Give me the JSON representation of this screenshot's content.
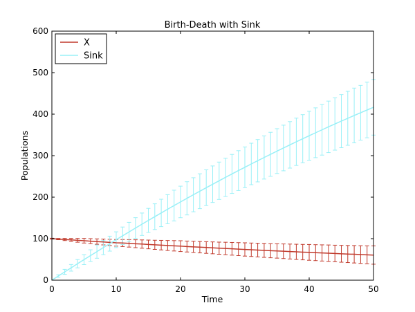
{
  "chart_data": {
    "type": "line",
    "title": "Birth-Death with Sink",
    "xlabel": "Time",
    "ylabel": "Populations",
    "xlim": [
      0,
      50
    ],
    "ylim": [
      0,
      600
    ],
    "xticks": [
      0,
      10,
      20,
      30,
      40,
      50
    ],
    "yticks": [
      0,
      100,
      200,
      300,
      400,
      500,
      600
    ],
    "xtick_labels": [
      "0",
      "10",
      "20",
      "30",
      "40",
      "50"
    ],
    "ytick_labels": [
      "0",
      "100",
      "200",
      "300",
      "400",
      "500",
      "600"
    ],
    "grid": false,
    "legend_position": "upper-left",
    "x": [
      0,
      1,
      2,
      3,
      4,
      5,
      6,
      7,
      8,
      9,
      10,
      11,
      12,
      13,
      14,
      15,
      16,
      17,
      18,
      19,
      20,
      21,
      22,
      23,
      24,
      25,
      26,
      27,
      28,
      29,
      30,
      31,
      32,
      33,
      34,
      35,
      36,
      37,
      38,
      39,
      40,
      41,
      42,
      43,
      44,
      45,
      46,
      47,
      48,
      49,
      50
    ],
    "series": [
      {
        "name": "X",
        "color": "#c0392b",
        "values": [
          100,
          99,
          98,
          97,
          96,
          95,
          94,
          93,
          92,
          91,
          90,
          89.5,
          88.7,
          87.8,
          87,
          86.1,
          85.2,
          84.4,
          83.6,
          82.8,
          82,
          81.1,
          80.3,
          79.5,
          78.7,
          77.9,
          77.1,
          76.4,
          75.6,
          74.8,
          74,
          73.3,
          72.6,
          71.8,
          71,
          70.4,
          69.7,
          69,
          68.3,
          67.6,
          67,
          66.3,
          65.6,
          65,
          64.3,
          63.6,
          63,
          62.4,
          61.7,
          61.1,
          60.5
        ],
        "errors": [
          1,
          1.5,
          2.5,
          3.5,
          4.5,
          5.5,
          6,
          6.5,
          7,
          7.5,
          8,
          8.5,
          9,
          9.5,
          10,
          10.5,
          11,
          11.5,
          12,
          12.5,
          13,
          13.2,
          13.5,
          13.8,
          14,
          14.3,
          14.6,
          15,
          15.3,
          15.6,
          16,
          16.2,
          16.5,
          16.8,
          17,
          17.3,
          17.6,
          18,
          18.3,
          18.6,
          19,
          19.2,
          19.5,
          19.8,
          20,
          20.3,
          20.6,
          21,
          21.3,
          21.6,
          22
        ]
      },
      {
        "name": "Sink",
        "color": "#99f0f7",
        "values": [
          0,
          10,
          20,
          29.8,
          39.7,
          49.5,
          59.2,
          68.8,
          78.5,
          88,
          97.5,
          107,
          116.3,
          125.6,
          134.8,
          144,
          153,
          162,
          171,
          179.8,
          188.5,
          197.2,
          205.8,
          214.3,
          222.8,
          231.2,
          239.5,
          247.8,
          256,
          264,
          272,
          280,
          287.8,
          295.6,
          303.3,
          311,
          318.5,
          326,
          333.4,
          340.8,
          348,
          355.2,
          362.3,
          369.4,
          376.3,
          383.2,
          390,
          396.8,
          403.4,
          410,
          416.5
        ],
        "errors": [
          0,
          3,
          6,
          8,
          10,
          12,
          14,
          16,
          17,
          18,
          19,
          21,
          23,
          25,
          27,
          29,
          31,
          33,
          35,
          37,
          38,
          40,
          41,
          42,
          43,
          44,
          45,
          46,
          47,
          48,
          49,
          50,
          51,
          52,
          53,
          54,
          55,
          56,
          57,
          58,
          59,
          60,
          61,
          62,
          63,
          64,
          65,
          66,
          66,
          67,
          67
        ]
      }
    ]
  }
}
